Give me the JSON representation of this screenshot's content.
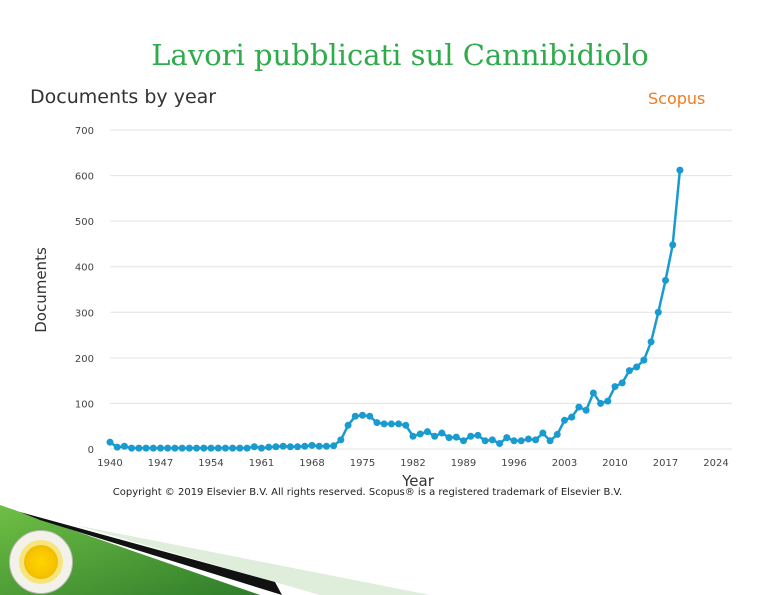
{
  "slide": {
    "title": "Lavori pubblicati sul Cannibidiolo",
    "brand": "Scopus",
    "copyright": "Copyright © 2019 Elsevier B.V. All rights reserved. Scopus® is a registered trademark of Elsevier B.V."
  },
  "colors": {
    "title": "#2eab4a",
    "brand": "#f07c1f",
    "series": "#1a9bcf",
    "grid": "#e3e3e3"
  },
  "chart_data": {
    "type": "line",
    "title": "Documents by year",
    "xlabel": "Year",
    "ylabel": "Documents",
    "xlim": [
      1940,
      2024
    ],
    "ylim": [
      0,
      700
    ],
    "x_ticks": [
      1940,
      1947,
      1954,
      1961,
      1968,
      1975,
      1982,
      1989,
      1996,
      2003,
      2010,
      2017,
      2024
    ],
    "y_ticks": [
      0,
      100,
      200,
      300,
      400,
      500,
      600,
      700
    ],
    "grid": "horizontal",
    "series": [
      {
        "x": [
          1940,
          1941,
          1942,
          1943,
          1944,
          1945,
          1946,
          1947,
          1948,
          1949,
          1950,
          1951,
          1952,
          1953,
          1954,
          1955,
          1956,
          1957,
          1958,
          1959,
          1960,
          1961,
          1962,
          1963,
          1964,
          1965,
          1966,
          1967,
          1968,
          1969,
          1970,
          1971,
          1972,
          1973,
          1974,
          1975,
          1976,
          1977,
          1978,
          1979,
          1980,
          1981,
          1982,
          1983,
          1984,
          1985,
          1986,
          1987,
          1988,
          1989,
          1990,
          1991,
          1992,
          1993,
          1994,
          1995,
          1996,
          1997,
          1998,
          1999,
          2000,
          2001,
          2002,
          2003,
          2004,
          2005,
          2006,
          2007,
          2008,
          2009,
          2010,
          2011,
          2012,
          2013,
          2014,
          2015,
          2016,
          2017,
          2018,
          2019
        ],
        "values": [
          15,
          4,
          6,
          2,
          2,
          2,
          2,
          2,
          2,
          2,
          2,
          2,
          2,
          2,
          2,
          2,
          2,
          2,
          2,
          2,
          5,
          2,
          4,
          5,
          6,
          5,
          5,
          6,
          8,
          6,
          6,
          7,
          20,
          52,
          72,
          74,
          72,
          58,
          55,
          55,
          55,
          52,
          28,
          33,
          38,
          28,
          35,
          25,
          26,
          18,
          28,
          30,
          18,
          20,
          12,
          25,
          18,
          18,
          22,
          20,
          35,
          18,
          32,
          63,
          70,
          92,
          85,
          123,
          100,
          105,
          137,
          145,
          172,
          180,
          195,
          235,
          300,
          370,
          448,
          612
        ]
      }
    ]
  }
}
